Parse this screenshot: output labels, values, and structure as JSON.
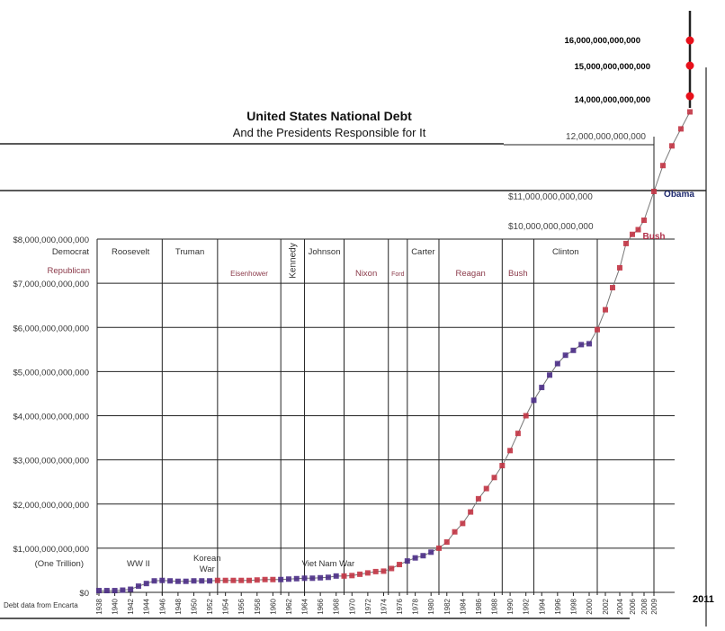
{
  "chart_data": {
    "type": "line",
    "title": "United States National Debt",
    "subtitle": "And the Presidents Responsible for It",
    "source_note": "Debt data from Encarta",
    "party_labels": {
      "democrat": "Democrat",
      "republican": "Republican"
    },
    "colors": {
      "democrat": "#4a2c86",
      "republican": "#c23444",
      "projection": "#e8101a",
      "grid": "#333333",
      "line": "#777777"
    },
    "y_ticks": [
      {
        "value": 0,
        "label": "$0"
      },
      {
        "value": 1,
        "label": "$1,000,000,000,000",
        "sublabel": "(One Trillion)"
      },
      {
        "value": 2,
        "label": "$2,000,000,000,000"
      },
      {
        "value": 3,
        "label": "$3,000,000,000,000"
      },
      {
        "value": 4,
        "label": "$4,000,000,000,000"
      },
      {
        "value": 5,
        "label": "$5,000,000,000,000"
      },
      {
        "value": 6,
        "label": "$6,000,000,000,000"
      },
      {
        "value": 7,
        "label": "$7,000,000,000,000"
      },
      {
        "value": 8,
        "label": "$8,000,000,000,000"
      }
    ],
    "upper_labels": [
      {
        "value": 10,
        "label": "$10,000,000,000,000"
      },
      {
        "value": 11,
        "label": "$11,000,000,000,000"
      },
      {
        "value": 12,
        "label": "12,000,000,000,000"
      },
      {
        "value": 14,
        "label": "14,000,000,000,000"
      },
      {
        "value": 15,
        "label": "15,000,000,000,000"
      },
      {
        "value": 16,
        "label": "16,000,000,000,000"
      }
    ],
    "y_unit": "trillions of dollars",
    "x_ticks": [
      "1938",
      "1940",
      "1942",
      "1944",
      "1946",
      "1948",
      "1950",
      "1952",
      "1954",
      "1956",
      "1958",
      "1960",
      "1962",
      "1964",
      "1966",
      "1968",
      "1970",
      "1972",
      "1974",
      "1976",
      "1978",
      "1980",
      "1982",
      "1984",
      "1986",
      "1988",
      "1990",
      "1992",
      "1994",
      "1996",
      "1998",
      "2000",
      "2002",
      "2004",
      "2006",
      "2008",
      "2009"
    ],
    "x_end_label": "2011",
    "presidents": [
      {
        "name": "Roosevelt",
        "party": "democrat",
        "start": 1938,
        "end": 1946
      },
      {
        "name": "Truman",
        "party": "democrat",
        "start": 1946,
        "end": 1953
      },
      {
        "name": "Eisenhower",
        "party": "republican",
        "start": 1953,
        "end": 1961
      },
      {
        "name": "Kennedy",
        "party": "democrat",
        "start": 1961,
        "end": 1964
      },
      {
        "name": "Johnson",
        "party": "democrat",
        "start": 1964,
        "end": 1969
      },
      {
        "name": "Nixon",
        "party": "republican",
        "start": 1969,
        "end": 1974.6
      },
      {
        "name": "Ford",
        "party": "republican",
        "start": 1974.6,
        "end": 1977
      },
      {
        "name": "Carter",
        "party": "democrat",
        "start": 1977,
        "end": 1981
      },
      {
        "name": "Reagan",
        "party": "republican",
        "start": 1981,
        "end": 1989
      },
      {
        "name": "Bush",
        "party": "republican",
        "start": 1989,
        "end": 1993
      },
      {
        "name": "Clinton",
        "party": "democrat",
        "start": 1993,
        "end": 2001
      },
      {
        "name": "Bush",
        "party": "republican",
        "start": 2001,
        "end": 2009
      },
      {
        "name": "Obama",
        "party": "democrat",
        "start": 2009,
        "end": 2011
      }
    ],
    "annotations": [
      {
        "text": "WW II",
        "year": 1943
      },
      {
        "text": "Korean\nWar",
        "year": 1951
      },
      {
        "text": "Viet Nam War",
        "year": 1967
      }
    ],
    "series": [
      {
        "points": [
          [
            1938,
            0.04
          ],
          [
            1939,
            0.04
          ],
          [
            1940,
            0.04
          ],
          [
            1941,
            0.05
          ],
          [
            1942,
            0.07
          ],
          [
            1943,
            0.14
          ],
          [
            1944,
            0.2
          ],
          [
            1945,
            0.26
          ],
          [
            1946,
            0.27
          ],
          [
            1947,
            0.26
          ],
          [
            1948,
            0.25
          ],
          [
            1949,
            0.25
          ],
          [
            1950,
            0.26
          ],
          [
            1951,
            0.26
          ],
          [
            1952,
            0.26
          ],
          [
            1953,
            0.27
          ],
          [
            1954,
            0.27
          ],
          [
            1955,
            0.27
          ],
          [
            1956,
            0.27
          ],
          [
            1957,
            0.27
          ],
          [
            1958,
            0.28
          ],
          [
            1959,
            0.29
          ],
          [
            1960,
            0.29
          ],
          [
            1961,
            0.29
          ],
          [
            1962,
            0.3
          ],
          [
            1963,
            0.31
          ],
          [
            1964,
            0.32
          ],
          [
            1965,
            0.32
          ],
          [
            1966,
            0.33
          ],
          [
            1967,
            0.34
          ],
          [
            1968,
            0.37
          ],
          [
            1969,
            0.37
          ],
          [
            1970,
            0.38
          ],
          [
            1971,
            0.41
          ],
          [
            1972,
            0.44
          ],
          [
            1973,
            0.47
          ],
          [
            1974,
            0.48
          ],
          [
            1975,
            0.54
          ],
          [
            1976,
            0.63
          ],
          [
            1977,
            0.71
          ],
          [
            1978,
            0.78
          ],
          [
            1979,
            0.83
          ],
          [
            1980,
            0.91
          ],
          [
            1981,
            1.0
          ],
          [
            1982,
            1.14
          ],
          [
            1983,
            1.37
          ],
          [
            1984,
            1.56
          ],
          [
            1985,
            1.82
          ],
          [
            1986,
            2.12
          ],
          [
            1987,
            2.35
          ],
          [
            1988,
            2.6
          ],
          [
            1989,
            2.87
          ],
          [
            1990,
            3.21
          ],
          [
            1991,
            3.6
          ],
          [
            1992,
            4.0
          ],
          [
            1993,
            4.35
          ],
          [
            1994,
            4.64
          ],
          [
            1995,
            4.92
          ],
          [
            1996,
            5.18
          ],
          [
            1997,
            5.37
          ],
          [
            1998,
            5.48
          ],
          [
            1999,
            5.61
          ],
          [
            2000,
            5.63
          ],
          [
            2001,
            5.95
          ],
          [
            2002,
            6.4
          ],
          [
            2003,
            6.9
          ],
          [
            2004,
            7.35
          ],
          [
            2005,
            7.9
          ],
          [
            2006,
            8.5
          ],
          [
            2007,
            9.0
          ],
          [
            2008,
            10.0
          ],
          [
            2009,
            11.0
          ],
          [
            2009.5,
            11.6
          ],
          [
            2010,
            12.1
          ],
          [
            2010.5,
            12.8
          ],
          [
            2011,
            13.5
          ]
        ]
      },
      {
        "style": "projection",
        "points": [
          [
            2011,
            14
          ],
          [
            2011,
            15
          ],
          [
            2011,
            16
          ]
        ]
      }
    ],
    "grid": true
  }
}
